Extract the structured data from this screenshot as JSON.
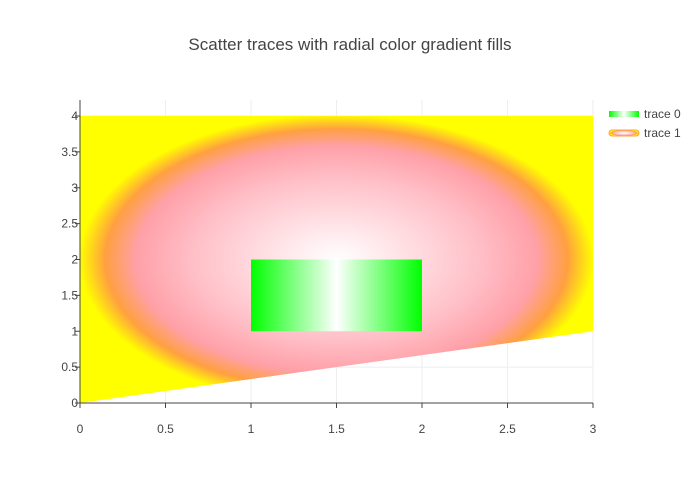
{
  "chart_data": {
    "type": "scatter",
    "title": "Scatter traces with radial color gradient fills",
    "xlabel": "",
    "ylabel": "",
    "xlim": [
      0,
      3
    ],
    "ylim": [
      0,
      4
    ],
    "grid": true,
    "legend_position": "top-right",
    "x_ticks": [
      "0",
      "0.5",
      "1",
      "1.5",
      "2",
      "2.5",
      "3"
    ],
    "y_ticks": [
      "0",
      "0.5",
      "1",
      "1.5",
      "2",
      "2.5",
      "3",
      "3.5",
      "4"
    ],
    "series": [
      {
        "name": "trace 0",
        "fill": "horizontal gradient",
        "colors": [
          "#00ff00",
          "#ffffff"
        ],
        "x": [
          1,
          2,
          2,
          1,
          1
        ],
        "y": [
          1,
          1,
          2,
          2,
          1
        ]
      },
      {
        "name": "trace 1",
        "fill": "radial gradient",
        "colors": [
          "#ffffff",
          "#ff0000",
          "#ffff00"
        ],
        "x": [
          0,
          3,
          3,
          0,
          0
        ],
        "y": [
          0,
          1,
          4,
          4,
          0
        ]
      }
    ]
  }
}
